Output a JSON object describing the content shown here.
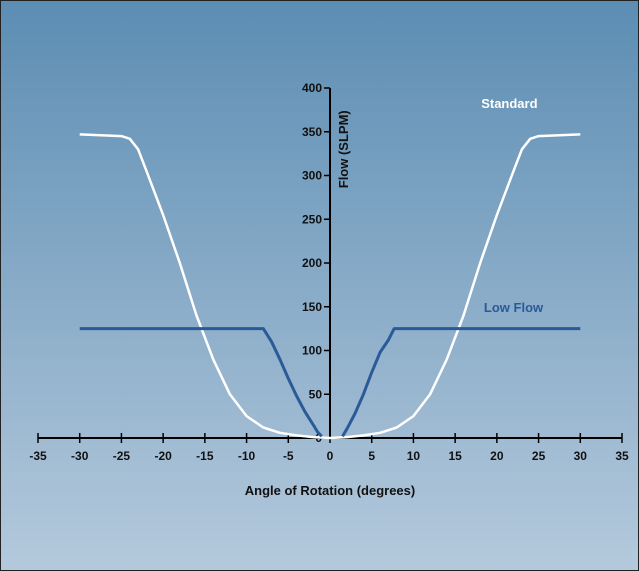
{
  "chart_data": {
    "type": "line",
    "title": "",
    "xlabel": "Angle of Rotation (degrees)",
    "ylabel": "Flow (SLPM)",
    "xlim": [
      -35,
      35
    ],
    "ylim": [
      0,
      400
    ],
    "x_ticks": [
      -35,
      -30,
      -25,
      -20,
      -15,
      -10,
      -5,
      0,
      5,
      10,
      15,
      20,
      25,
      30,
      35
    ],
    "y_ticks": [
      0,
      50,
      100,
      150,
      200,
      250,
      300,
      350,
      400
    ],
    "grid": false,
    "background_colors": [
      "#5c8db3",
      "#b4c9dc"
    ],
    "series": [
      {
        "name": "Standard",
        "color": "#ffffff",
        "points": [
          [
            -30,
            347
          ],
          [
            -25,
            345
          ],
          [
            -24,
            342
          ],
          [
            -23,
            330
          ],
          [
            -22,
            305
          ],
          [
            -20,
            255
          ],
          [
            -18,
            200
          ],
          [
            -16,
            140
          ],
          [
            -14,
            90
          ],
          [
            -12,
            50
          ],
          [
            -10,
            25
          ],
          [
            -8,
            12
          ],
          [
            -6,
            6
          ],
          [
            -4,
            3
          ],
          [
            -2,
            1
          ],
          [
            0,
            0
          ],
          [
            2,
            1
          ],
          [
            4,
            3
          ],
          [
            6,
            6
          ],
          [
            8,
            12
          ],
          [
            10,
            25
          ],
          [
            12,
            50
          ],
          [
            14,
            90
          ],
          [
            16,
            140
          ],
          [
            18,
            200
          ],
          [
            20,
            255
          ],
          [
            22,
            305
          ],
          [
            23,
            330
          ],
          [
            24,
            342
          ],
          [
            25,
            345
          ],
          [
            30,
            347
          ]
        ]
      },
      {
        "name": "Low Flow",
        "color": "#2a5a98",
        "points_left": [
          [
            -30,
            125
          ],
          [
            -8,
            125
          ],
          [
            -7,
            110
          ],
          [
            -6,
            90
          ],
          [
            -5,
            68
          ],
          [
            -4,
            48
          ],
          [
            -3,
            30
          ],
          [
            -2,
            15
          ],
          [
            -1.5,
            7
          ],
          [
            -1,
            2
          ]
        ],
        "points_right": [
          [
            1.5,
            2
          ],
          [
            2,
            10
          ],
          [
            3,
            28
          ],
          [
            4,
            50
          ],
          [
            5,
            75
          ],
          [
            6,
            98
          ],
          [
            7,
            112
          ],
          [
            7.7,
            125
          ],
          [
            30,
            125
          ]
        ]
      }
    ]
  }
}
